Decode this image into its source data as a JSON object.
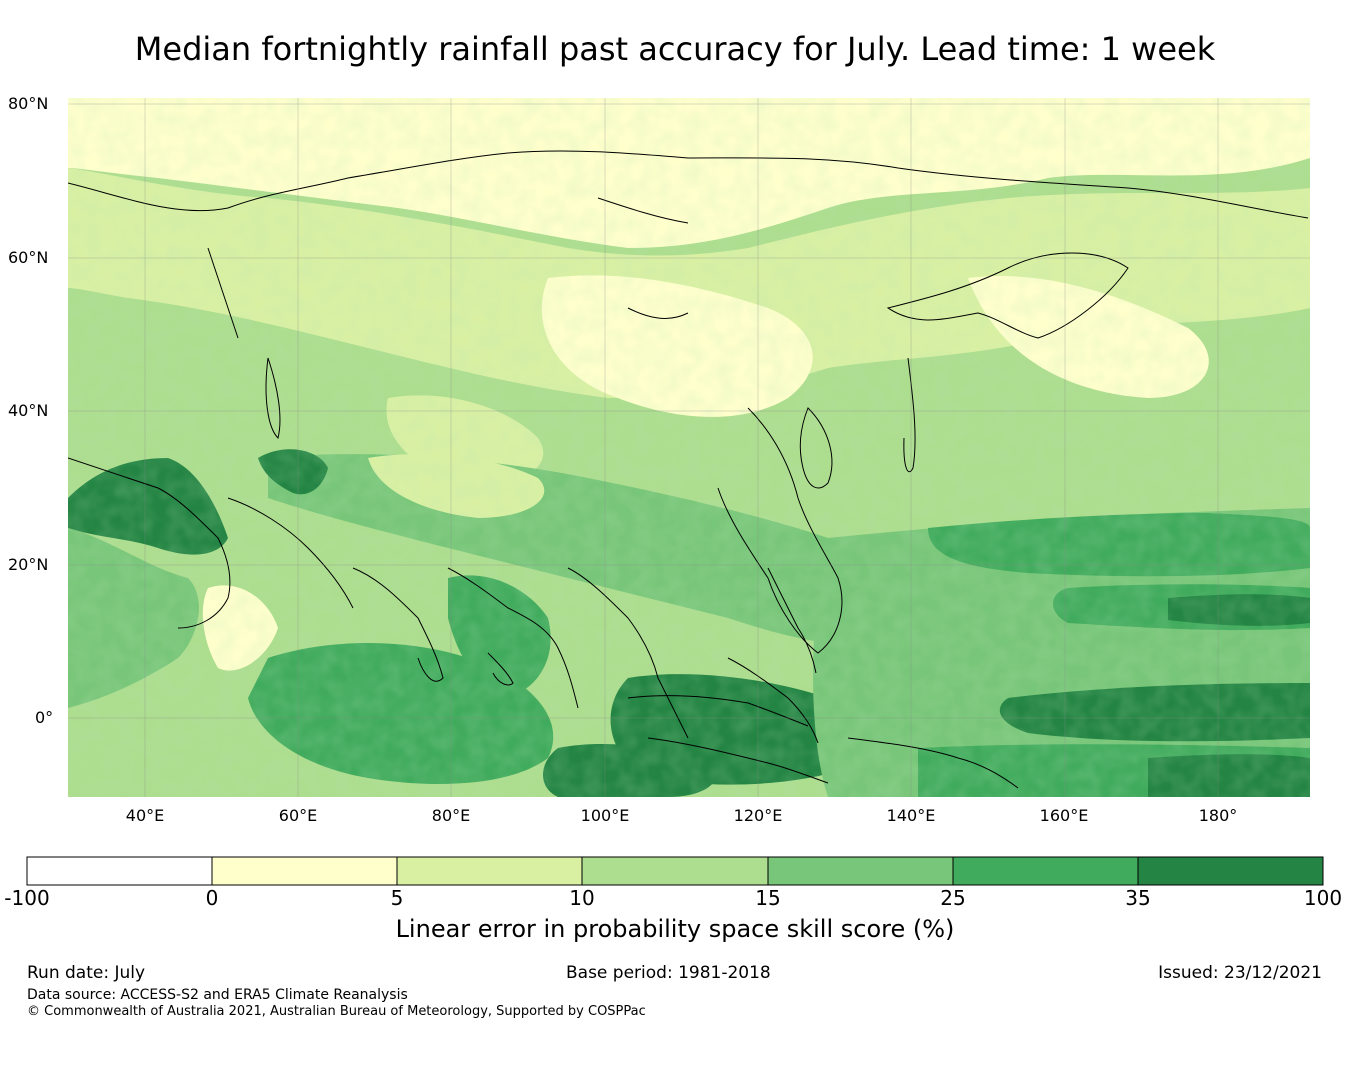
{
  "title": "Median fortnightly rainfall past accuracy for July. Lead time: 1 week",
  "map": {
    "lat_labels": [
      "80°N",
      "60°N",
      "40°N",
      "20°N",
      "0°"
    ],
    "lon_labels": [
      "40°E",
      "60°E",
      "80°E",
      "100°E",
      "120°E",
      "140°E",
      "160°E",
      "180°"
    ],
    "extent": {
      "lon_min": 30,
      "lon_max": 192,
      "lat_min": -10,
      "lat_max": 81
    }
  },
  "legend": {
    "ticks": [
      "-100",
      "0",
      "5",
      "10",
      "15",
      "25",
      "35",
      "100"
    ],
    "colors": [
      "#ffffff",
      "#ffffcc",
      "#d9f0a3",
      "#addd8e",
      "#78c679",
      "#41ab5d",
      "#238443"
    ],
    "label": "Linear error in probability space skill score (%)"
  },
  "footer": {
    "run_date": "Run date: July",
    "base_period": "Base period: 1981-2018",
    "issued": "Issued: 23/12/2021",
    "data_source": "Data source: ACCESS-S2 and ERA5 Climate Reanalysis",
    "copyright": "© Commonwealth of Australia 2021, Australian Bureau of Meteorology, Supported by COSPPac"
  }
}
